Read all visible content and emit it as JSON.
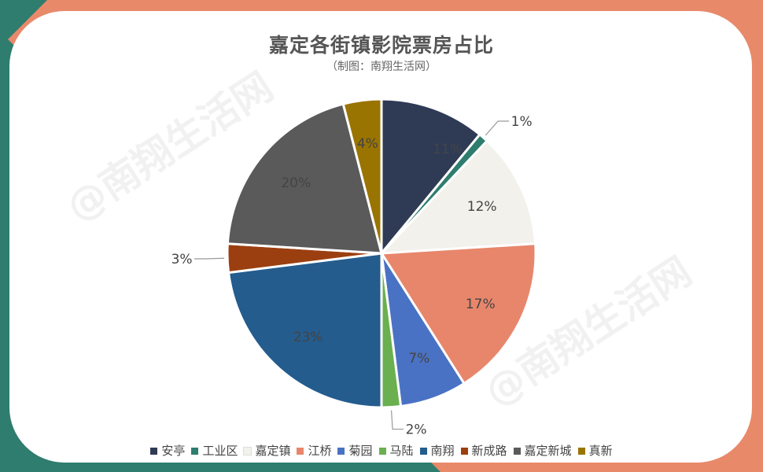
{
  "chart_data": {
    "type": "pie",
    "title": "嘉定各街镇影院票房占比",
    "subtitle": "（制图：南翔生活网）",
    "categories": [
      "安亭",
      "工业区",
      "嘉定镇",
      "江桥",
      "菊园",
      "马陆",
      "南翔",
      "新成路",
      "嘉定新城",
      "真新"
    ],
    "values": [
      11,
      1,
      12,
      17,
      7,
      2,
      23,
      3,
      20,
      4
    ],
    "labels": [
      "11%",
      "1%",
      "12%",
      "17%",
      "7%",
      "2%",
      "23%",
      "3%",
      "20%",
      "4%"
    ],
    "colors": [
      "#2f3b55",
      "#2e7d6e",
      "#f3f1ec",
      "#e8866b",
      "#4a72c4",
      "#6aaf50",
      "#245c8e",
      "#9c3f10",
      "#5a5a5a",
      "#9a7400"
    ],
    "legend_position": "bottom"
  },
  "watermark": "@南翔生活网",
  "brand": "南翔生活网",
  "frame_colors": {
    "top_right": "#e8896a",
    "bottom_left": "#2e7d6e"
  }
}
